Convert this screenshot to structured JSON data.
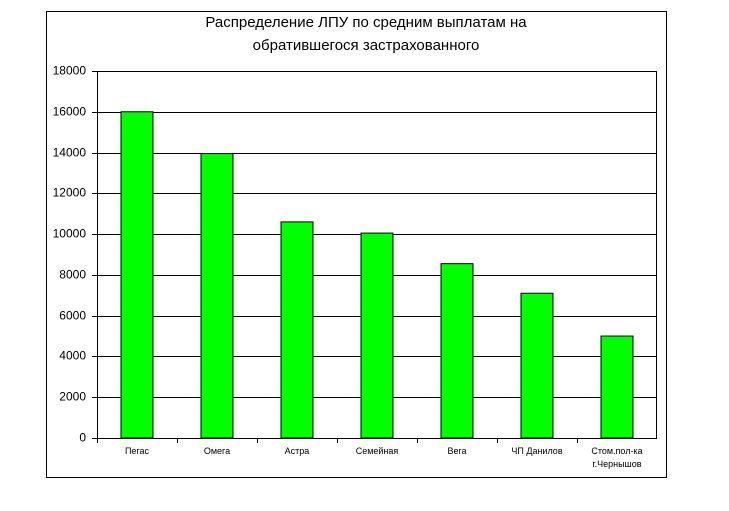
{
  "chart_data": {
    "type": "bar",
    "title": [
      "Распределение ЛПУ по средним выплатам на",
      "обратившегося застрахованного"
    ],
    "categories": [
      "Пегас",
      "Омега",
      "Астра",
      "Семейная",
      "Вега",
      "ЧП Данилов",
      "Стом.пол-ка г.Чернышов"
    ],
    "values": [
      16000,
      13950,
      10600,
      10050,
      8550,
      7100,
      5000
    ],
    "color": "#00ff00",
    "ylim": [
      0,
      18000
    ],
    "yticks": [
      0,
      2000,
      4000,
      6000,
      8000,
      10000,
      12000,
      14000,
      16000,
      18000
    ],
    "grid": true
  }
}
